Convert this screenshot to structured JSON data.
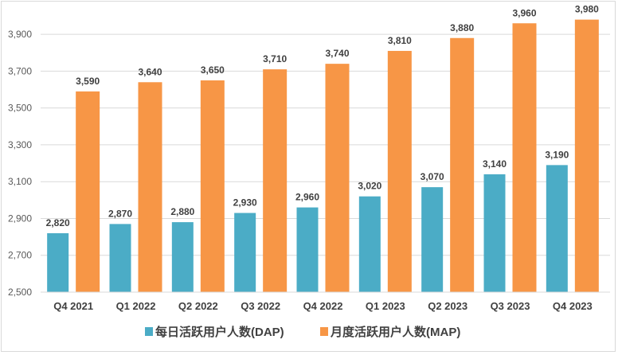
{
  "chart_data": {
    "type": "bar",
    "title": "",
    "xlabel": "",
    "ylabel": "",
    "categories": [
      "Q4 2021",
      "Q1 2022",
      "Q2 2022",
      "Q3 2022",
      "Q4 2022",
      "Q1 2023",
      "Q2 2023",
      "Q3 2023",
      "Q4 2023"
    ],
    "series": [
      {
        "name": "每日活跃用户人数(DAP)",
        "color": "#4bacc6",
        "values": [
          2820,
          2870,
          2880,
          2930,
          2960,
          3020,
          3070,
          3140,
          3190
        ]
      },
      {
        "name": "月度活跃用户人数(MAP)",
        "color": "#f79646",
        "values": [
          3590,
          3640,
          3650,
          3710,
          3740,
          3810,
          3880,
          3960,
          3980
        ]
      }
    ],
    "ylim": [
      2500,
      4000
    ],
    "yticks": [
      2500,
      2700,
      2900,
      3100,
      3300,
      3500,
      3700,
      3900
    ],
    "ytick_labels": [
      "2,500",
      "2,700",
      "2,900",
      "3,100",
      "3,300",
      "3,500",
      "3,700",
      "3,900"
    ],
    "grid": true,
    "legend": "bottom",
    "data_labels": true
  }
}
